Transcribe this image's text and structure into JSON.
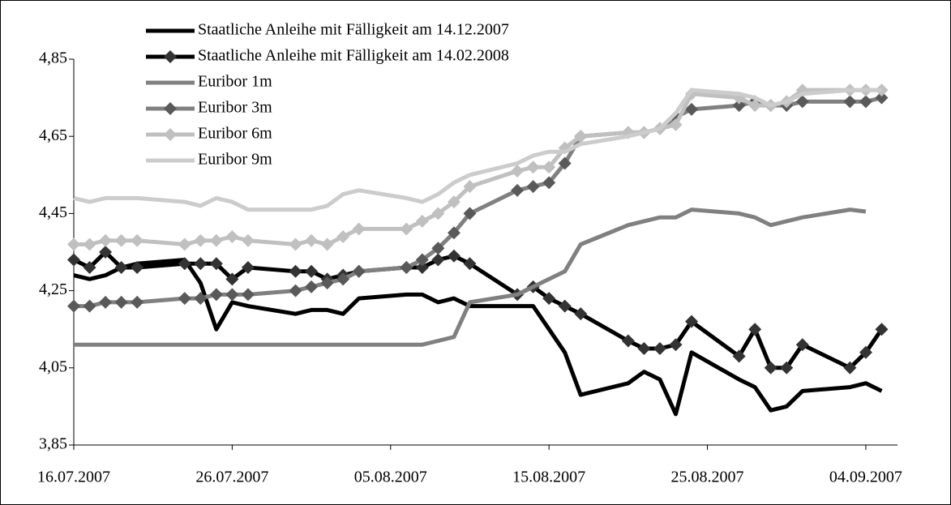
{
  "chart_data": {
    "type": "line",
    "x": [
      "16.07.2007",
      "17.07.2007",
      "18.07.2007",
      "19.07.2007",
      "20.07.2007",
      "23.07.2007",
      "24.07.2007",
      "25.07.2007",
      "26.07.2007",
      "27.07.2007",
      "30.07.2007",
      "31.07.2007",
      "01.08.2007",
      "02.08.2007",
      "03.08.2007",
      "06.08.2007",
      "07.08.2007",
      "08.08.2007",
      "09.08.2007",
      "10.08.2007",
      "13.08.2007",
      "14.08.2007",
      "15.08.2007",
      "16.08.2007",
      "17.08.2007",
      "20.08.2007",
      "21.08.2007",
      "22.08.2007",
      "23.08.2007",
      "24.08.2007",
      "27.08.2007",
      "28.08.2007",
      "29.08.2007",
      "30.08.2007",
      "31.08.2007",
      "03.09.2007",
      "04.09.2007",
      "05.09.2007"
    ],
    "series": [
      {
        "name": "Staatliche Anleihe mit Fälligkeit am 14.12.2007",
        "color": "#000000",
        "marker": "none",
        "values": [
          4.29,
          4.28,
          4.29,
          4.31,
          4.32,
          4.33,
          4.27,
          4.15,
          4.22,
          4.21,
          4.19,
          4.2,
          4.2,
          4.19,
          4.23,
          4.24,
          4.24,
          4.22,
          4.23,
          4.21,
          4.21,
          4.21,
          4.15,
          4.09,
          3.98,
          4.01,
          4.04,
          4.02,
          3.93,
          4.09,
          4.02,
          4.0,
          3.94,
          3.95,
          3.99,
          4.0,
          4.01,
          3.99
        ]
      },
      {
        "name": "Staatliche Anleihe mit Fälligkeit am 14.02.2008",
        "color": "#000000",
        "marker": "diamond",
        "marker_color": "#333333",
        "values": [
          4.33,
          4.31,
          4.35,
          4.31,
          4.31,
          4.32,
          4.32,
          4.32,
          4.28,
          4.31,
          4.3,
          4.3,
          4.28,
          4.29,
          4.3,
          4.31,
          4.31,
          4.33,
          4.34,
          4.32,
          4.24,
          4.26,
          4.23,
          4.21,
          4.19,
          4.12,
          4.1,
          4.1,
          4.11,
          4.17,
          4.08,
          4.15,
          4.05,
          4.05,
          4.11,
          4.05,
          4.09,
          4.15
        ]
      },
      {
        "name": "Euribor 1m",
        "color": "#808080",
        "marker": "none",
        "values": [
          4.11,
          4.11,
          4.11,
          4.11,
          4.11,
          4.11,
          4.11,
          4.11,
          4.11,
          4.11,
          4.11,
          4.11,
          4.11,
          4.11,
          4.11,
          4.11,
          4.11,
          4.12,
          4.13,
          4.22,
          4.24,
          4.26,
          4.28,
          4.3,
          4.37,
          4.42,
          4.43,
          4.44,
          4.44,
          4.46,
          4.45,
          4.44,
          4.42,
          4.43,
          4.44,
          4.46,
          4.455,
          null
        ]
      },
      {
        "name": "Euribor 3m",
        "color": "#808080",
        "marker": "diamond",
        "marker_color": "#595959",
        "values": [
          4.21,
          4.21,
          4.22,
          4.22,
          4.22,
          4.23,
          4.23,
          4.24,
          4.24,
          4.24,
          4.25,
          4.26,
          4.27,
          4.28,
          4.3,
          4.31,
          4.33,
          4.36,
          4.4,
          4.45,
          4.51,
          4.52,
          4.53,
          4.58,
          4.65,
          4.66,
          4.66,
          4.67,
          4.7,
          4.72,
          4.73,
          4.74,
          4.73,
          4.73,
          4.74,
          4.74,
          4.74,
          4.75
        ]
      },
      {
        "name": "Euribor 6m",
        "color": "#c0c0c0",
        "marker": "diamond",
        "marker_color": "#c0c0c0",
        "values": [
          4.37,
          4.37,
          4.38,
          4.38,
          4.38,
          4.37,
          4.38,
          4.38,
          4.39,
          4.38,
          4.37,
          4.38,
          4.37,
          4.39,
          4.41,
          4.41,
          4.43,
          4.45,
          4.48,
          4.52,
          4.56,
          4.57,
          4.57,
          4.62,
          4.65,
          4.66,
          4.66,
          4.67,
          4.68,
          4.76,
          4.75,
          4.73,
          4.73,
          4.74,
          4.77,
          4.77,
          4.77,
          4.77
        ]
      },
      {
        "name": "Euribor 9m",
        "color": "#cccccc",
        "marker": "none",
        "values": [
          4.49,
          4.48,
          4.49,
          4.49,
          4.49,
          4.48,
          4.47,
          4.49,
          4.48,
          4.46,
          4.46,
          4.46,
          4.47,
          4.5,
          4.51,
          4.49,
          4.48,
          4.5,
          4.53,
          4.55,
          4.58,
          4.6,
          4.61,
          4.61,
          4.63,
          4.65,
          4.66,
          4.67,
          4.71,
          4.77,
          4.76,
          4.75,
          4.73,
          4.74,
          4.76,
          4.77,
          4.77,
          4.77
        ]
      }
    ],
    "xlim": [
      "16.07.2007",
      "06.09.2007"
    ],
    "xticks": [
      "16.07.2007",
      "26.07.2007",
      "05.08.2007",
      "15.08.2007",
      "25.08.2007",
      "04.09.2007"
    ],
    "ylim": [
      3.85,
      4.85
    ],
    "yticks": [
      {
        "value": 3.85,
        "label": "3,85"
      },
      {
        "value": 4.05,
        "label": "4,05"
      },
      {
        "value": 4.25,
        "label": "4,25"
      },
      {
        "value": 4.45,
        "label": "4,45"
      },
      {
        "value": 4.65,
        "label": "4,65"
      },
      {
        "value": 4.85,
        "label": "4,85"
      }
    ],
    "grid": false,
    "legend": "top-left"
  }
}
